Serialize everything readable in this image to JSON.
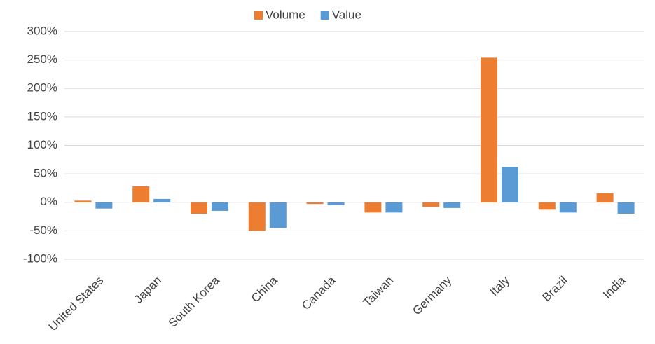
{
  "chart_data": {
    "type": "bar",
    "categories": [
      "United States",
      "Japan",
      "South Korea",
      "China",
      "Canada",
      "Taiwan",
      "Germany",
      "Italy",
      "Brazil",
      "India"
    ],
    "series": [
      {
        "name": "Volume",
        "color": "#ED7D31",
        "values": [
          3,
          28,
          -20,
          -50,
          -3,
          -18,
          -8,
          254,
          -13,
          16
        ]
      },
      {
        "name": "Value",
        "color": "#5B9BD5",
        "values": [
          -11,
          6,
          -15,
          -45,
          -5,
          -18,
          -10,
          62,
          -18,
          -20
        ]
      }
    ],
    "ylim": [
      -100,
      300
    ],
    "yticks": [
      {
        "value": -100,
        "label": "-100%"
      },
      {
        "value": -50,
        "label": "-50%"
      },
      {
        "value": 0,
        "label": "0%"
      },
      {
        "value": 50,
        "label": "50%"
      },
      {
        "value": 100,
        "label": "100%"
      },
      {
        "value": 150,
        "label": "150%"
      },
      {
        "value": 200,
        "label": "200%"
      },
      {
        "value": 250,
        "label": "250%"
      },
      {
        "value": 300,
        "label": "300%"
      }
    ],
    "grid": true,
    "legend": "top"
  }
}
